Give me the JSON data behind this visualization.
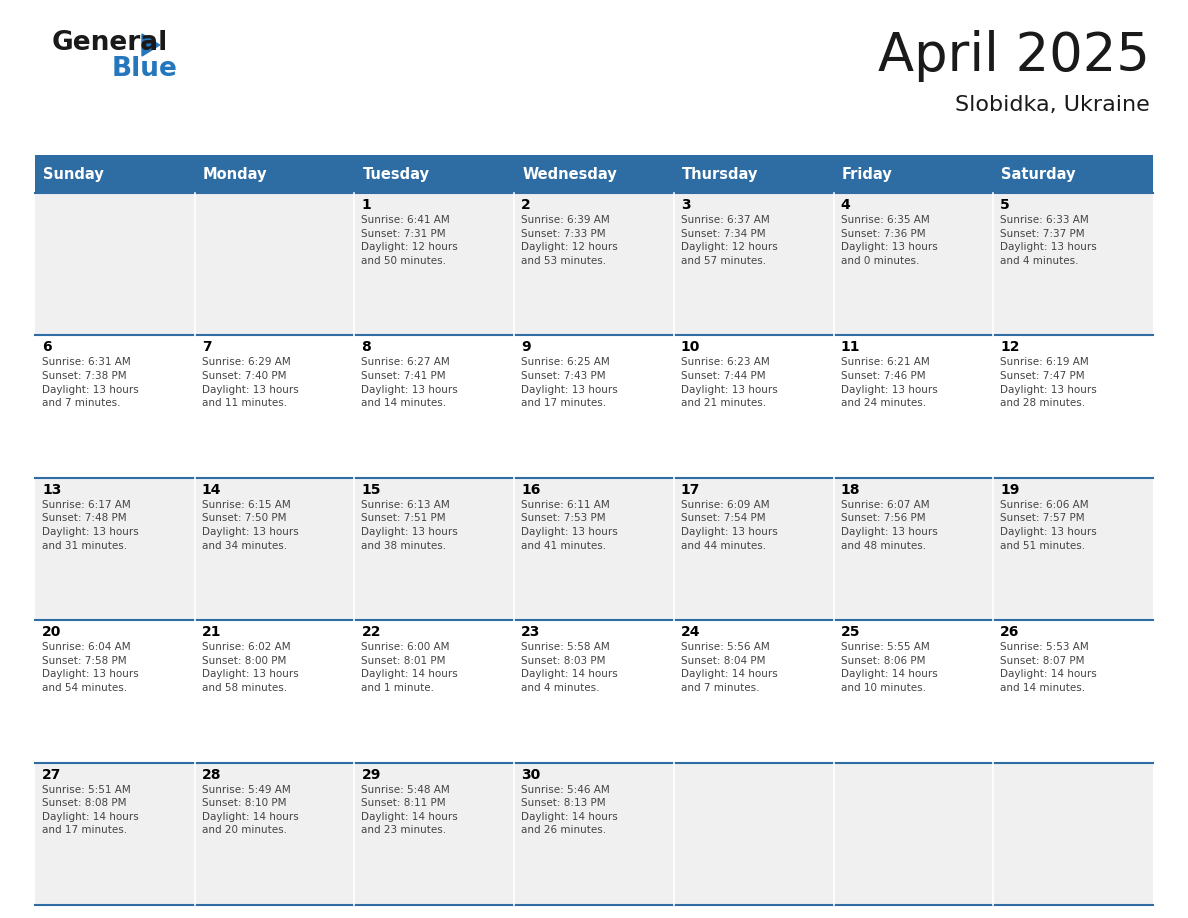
{
  "title": "April 2025",
  "subtitle": "Slobidka, Ukraine",
  "header_bg": "#2E6DA4",
  "header_text_color": "#FFFFFF",
  "day_headers": [
    "Sunday",
    "Monday",
    "Tuesday",
    "Wednesday",
    "Thursday",
    "Friday",
    "Saturday"
  ],
  "row_bg_odd": "#F0F0F0",
  "row_bg_even": "#FFFFFF",
  "cell_border_color": "#2E6DA4",
  "day_number_color": "#000000",
  "cell_text_color": "#444444",
  "calendar": [
    [
      {
        "day": "",
        "info": ""
      },
      {
        "day": "",
        "info": ""
      },
      {
        "day": "1",
        "info": "Sunrise: 6:41 AM\nSunset: 7:31 PM\nDaylight: 12 hours\nand 50 minutes."
      },
      {
        "day": "2",
        "info": "Sunrise: 6:39 AM\nSunset: 7:33 PM\nDaylight: 12 hours\nand 53 minutes."
      },
      {
        "day": "3",
        "info": "Sunrise: 6:37 AM\nSunset: 7:34 PM\nDaylight: 12 hours\nand 57 minutes."
      },
      {
        "day": "4",
        "info": "Sunrise: 6:35 AM\nSunset: 7:36 PM\nDaylight: 13 hours\nand 0 minutes."
      },
      {
        "day": "5",
        "info": "Sunrise: 6:33 AM\nSunset: 7:37 PM\nDaylight: 13 hours\nand 4 minutes."
      }
    ],
    [
      {
        "day": "6",
        "info": "Sunrise: 6:31 AM\nSunset: 7:38 PM\nDaylight: 13 hours\nand 7 minutes."
      },
      {
        "day": "7",
        "info": "Sunrise: 6:29 AM\nSunset: 7:40 PM\nDaylight: 13 hours\nand 11 minutes."
      },
      {
        "day": "8",
        "info": "Sunrise: 6:27 AM\nSunset: 7:41 PM\nDaylight: 13 hours\nand 14 minutes."
      },
      {
        "day": "9",
        "info": "Sunrise: 6:25 AM\nSunset: 7:43 PM\nDaylight: 13 hours\nand 17 minutes."
      },
      {
        "day": "10",
        "info": "Sunrise: 6:23 AM\nSunset: 7:44 PM\nDaylight: 13 hours\nand 21 minutes."
      },
      {
        "day": "11",
        "info": "Sunrise: 6:21 AM\nSunset: 7:46 PM\nDaylight: 13 hours\nand 24 minutes."
      },
      {
        "day": "12",
        "info": "Sunrise: 6:19 AM\nSunset: 7:47 PM\nDaylight: 13 hours\nand 28 minutes."
      }
    ],
    [
      {
        "day": "13",
        "info": "Sunrise: 6:17 AM\nSunset: 7:48 PM\nDaylight: 13 hours\nand 31 minutes."
      },
      {
        "day": "14",
        "info": "Sunrise: 6:15 AM\nSunset: 7:50 PM\nDaylight: 13 hours\nand 34 minutes."
      },
      {
        "day": "15",
        "info": "Sunrise: 6:13 AM\nSunset: 7:51 PM\nDaylight: 13 hours\nand 38 minutes."
      },
      {
        "day": "16",
        "info": "Sunrise: 6:11 AM\nSunset: 7:53 PM\nDaylight: 13 hours\nand 41 minutes."
      },
      {
        "day": "17",
        "info": "Sunrise: 6:09 AM\nSunset: 7:54 PM\nDaylight: 13 hours\nand 44 minutes."
      },
      {
        "day": "18",
        "info": "Sunrise: 6:07 AM\nSunset: 7:56 PM\nDaylight: 13 hours\nand 48 minutes."
      },
      {
        "day": "19",
        "info": "Sunrise: 6:06 AM\nSunset: 7:57 PM\nDaylight: 13 hours\nand 51 minutes."
      }
    ],
    [
      {
        "day": "20",
        "info": "Sunrise: 6:04 AM\nSunset: 7:58 PM\nDaylight: 13 hours\nand 54 minutes."
      },
      {
        "day": "21",
        "info": "Sunrise: 6:02 AM\nSunset: 8:00 PM\nDaylight: 13 hours\nand 58 minutes."
      },
      {
        "day": "22",
        "info": "Sunrise: 6:00 AM\nSunset: 8:01 PM\nDaylight: 14 hours\nand 1 minute."
      },
      {
        "day": "23",
        "info": "Sunrise: 5:58 AM\nSunset: 8:03 PM\nDaylight: 14 hours\nand 4 minutes."
      },
      {
        "day": "24",
        "info": "Sunrise: 5:56 AM\nSunset: 8:04 PM\nDaylight: 14 hours\nand 7 minutes."
      },
      {
        "day": "25",
        "info": "Sunrise: 5:55 AM\nSunset: 8:06 PM\nDaylight: 14 hours\nand 10 minutes."
      },
      {
        "day": "26",
        "info": "Sunrise: 5:53 AM\nSunset: 8:07 PM\nDaylight: 14 hours\nand 14 minutes."
      }
    ],
    [
      {
        "day": "27",
        "info": "Sunrise: 5:51 AM\nSunset: 8:08 PM\nDaylight: 14 hours\nand 17 minutes."
      },
      {
        "day": "28",
        "info": "Sunrise: 5:49 AM\nSunset: 8:10 PM\nDaylight: 14 hours\nand 20 minutes."
      },
      {
        "day": "29",
        "info": "Sunrise: 5:48 AM\nSunset: 8:11 PM\nDaylight: 14 hours\nand 23 minutes."
      },
      {
        "day": "30",
        "info": "Sunrise: 5:46 AM\nSunset: 8:13 PM\nDaylight: 14 hours\nand 26 minutes."
      },
      {
        "day": "",
        "info": ""
      },
      {
        "day": "",
        "info": ""
      },
      {
        "day": "",
        "info": ""
      }
    ]
  ],
  "logo_color_general": "#1a1a1a",
  "logo_color_blue": "#2477BD",
  "fig_width": 11.88,
  "fig_height": 9.18,
  "dpi": 100
}
